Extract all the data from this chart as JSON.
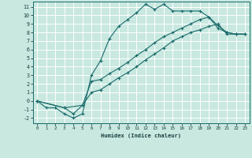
{
  "xlabel": "Humidex (Indice chaleur)",
  "background_color": "#c8e8e0",
  "grid_color": "#ffffff",
  "line_color": "#1a6b6b",
  "xlim": [
    -0.5,
    23.5
  ],
  "ylim": [
    -2.6,
    11.6
  ],
  "xticks": [
    0,
    1,
    2,
    3,
    4,
    5,
    6,
    7,
    8,
    9,
    10,
    11,
    12,
    13,
    14,
    15,
    16,
    17,
    18,
    19,
    20,
    21,
    22,
    23
  ],
  "yticks": [
    -2,
    -1,
    0,
    1,
    2,
    3,
    4,
    5,
    6,
    7,
    8,
    9,
    10,
    11
  ],
  "line1_x": [
    0,
    1,
    2,
    3,
    4,
    5,
    6,
    7,
    8,
    9,
    10,
    11,
    12,
    13,
    14,
    15,
    16,
    17,
    18,
    19,
    20,
    21,
    22,
    23
  ],
  "line1_y": [
    0.0,
    -0.8,
    -0.8,
    -1.5,
    -2.0,
    -1.5,
    3.0,
    4.7,
    7.3,
    8.7,
    9.5,
    10.3,
    11.3,
    10.7,
    11.3,
    10.5,
    10.5,
    10.5,
    10.5,
    9.8,
    8.8,
    8.0,
    7.8,
    7.8
  ],
  "line2_x": [
    0,
    3,
    4,
    5,
    6,
    7,
    8,
    9,
    10,
    11,
    12,
    13,
    14,
    15,
    16,
    17,
    18,
    19,
    20,
    21,
    22,
    23
  ],
  "line2_y": [
    0.0,
    -0.8,
    -1.5,
    -0.5,
    2.3,
    2.5,
    3.2,
    3.8,
    4.5,
    5.3,
    6.0,
    6.8,
    7.5,
    8.0,
    8.5,
    9.0,
    9.5,
    9.8,
    8.5,
    8.0,
    7.8,
    7.8
  ],
  "line3_x": [
    0,
    3,
    5,
    6,
    7,
    8,
    9,
    10,
    11,
    12,
    13,
    14,
    15,
    16,
    17,
    18,
    19,
    20,
    21,
    22,
    23
  ],
  "line3_y": [
    0.0,
    -0.8,
    -0.5,
    1.0,
    1.3,
    2.0,
    2.7,
    3.3,
    4.0,
    4.8,
    5.5,
    6.2,
    7.0,
    7.5,
    8.0,
    8.3,
    8.7,
    9.0,
    7.8,
    7.8,
    7.8
  ]
}
